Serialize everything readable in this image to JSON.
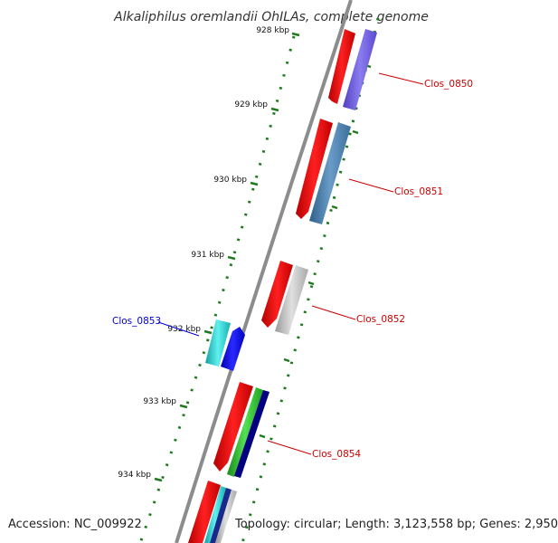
{
  "title": "Alkaliphilus oremlandii OhILAs, complete genome",
  "ticks": [
    "928 kbp",
    "929 kbp",
    "930 kbp",
    "931 kbp",
    "932 kbp",
    "933 kbp",
    "934 kbp"
  ],
  "genes": [
    {
      "name": "Clos_0850",
      "strand": "forward",
      "label_color": "#cc0000",
      "track_color": "#7b68ee"
    },
    {
      "name": "Clos_0851",
      "strand": "forward",
      "label_color": "#cc0000",
      "track_color": "#4682b4"
    },
    {
      "name": "Clos_0852",
      "strand": "forward",
      "label_color": "#cc0000",
      "track_color": "#c0c0c0"
    },
    {
      "name": "Clos_0853",
      "strand": "reverse",
      "label_color": "#0000cc",
      "track_color": "#0000ff"
    },
    {
      "name": "Clos_0854",
      "strand": "forward",
      "label_color": "#cc0000",
      "track_color": "#000080"
    }
  ],
  "colors": {
    "backbone": "#8c8c8c",
    "tick": "#1f7a1f",
    "cds": "#ff0000",
    "cyan": "#20d0d0",
    "green": "#33cc33",
    "navy": "#000080"
  },
  "footer": {
    "accession": "Accession: NC_009922",
    "topology": "Topology: circular; Length: 3,123,558 bp; Genes: 2,950"
  }
}
